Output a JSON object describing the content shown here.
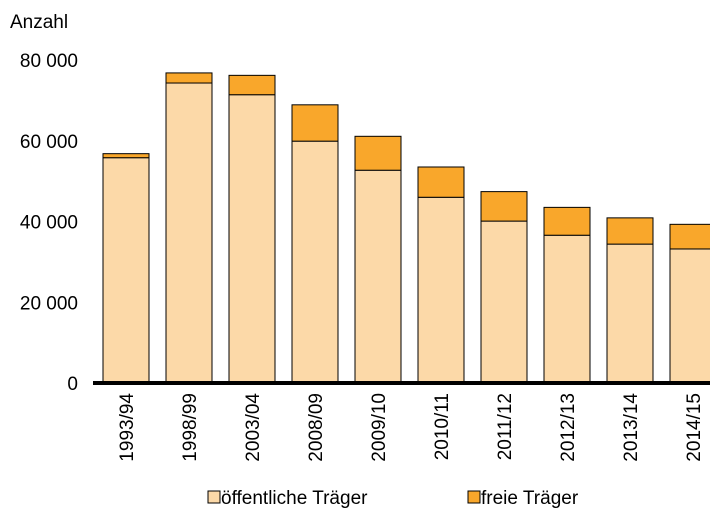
{
  "chart_data": {
    "type": "bar",
    "stacked": true,
    "ylabel": "Anzahl",
    "ylim": [
      0,
      80000
    ],
    "yticks": [
      0,
      20000,
      40000,
      60000,
      80000
    ],
    "ytick_labels": [
      "0",
      "20 000",
      "40 000",
      "60 000",
      "80 000"
    ],
    "grid": false,
    "legend_position": "bottom",
    "categories": [
      "1993/94",
      "1998/99",
      "2003/04",
      "2008/09",
      "2009/10",
      "2010/11",
      "2011/12",
      "2012/13",
      "2013/14",
      "2014/15"
    ],
    "series": [
      {
        "name": "öffentliche Träger",
        "color": "#FCD9A8",
        "values": [
          55800,
          74300,
          71400,
          59900,
          52700,
          46000,
          40100,
          36600,
          34400,
          33200
        ]
      },
      {
        "name": "freie Träger",
        "color": "#F9A72B",
        "values": [
          1000,
          2500,
          4800,
          9000,
          8400,
          7500,
          7300,
          6900,
          6500,
          6100
        ]
      }
    ]
  }
}
